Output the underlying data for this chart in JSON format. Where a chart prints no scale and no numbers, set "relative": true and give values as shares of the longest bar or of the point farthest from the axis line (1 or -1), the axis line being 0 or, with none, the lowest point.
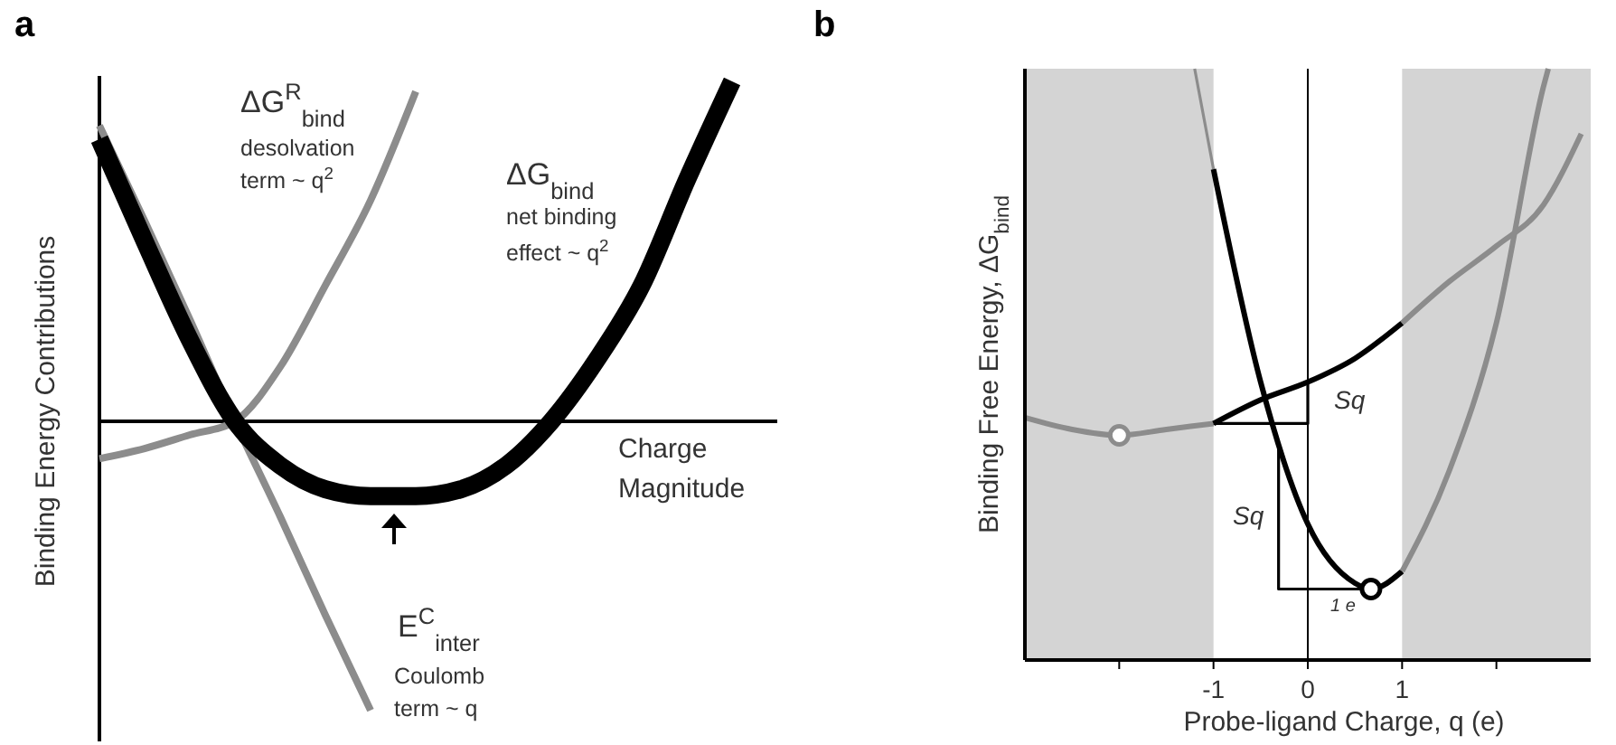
{
  "chart_data": [
    {
      "type": "line",
      "title": "a",
      "xlabel": "Charge Magnitude",
      "ylabel": "Binding Energy Contributions",
      "relative": true,
      "tick_labels": false,
      "categories": [
        null,
        null,
        null,
        null,
        null,
        null,
        null,
        null,
        null,
        null,
        null,
        null,
        null,
        null,
        null,
        null
      ],
      "series": [
        {
          "color": "#8c8c8c",
          "values": [
            -0.11,
            -0.08,
            -0.04,
            0,
            0.16,
            0.4,
            0.65,
            0.97,
            null,
            null,
            null,
            null,
            null,
            null,
            null,
            null
          ]
        },
        {
          "color": "#8c8c8c",
          "values": [
            0.87,
            0.59,
            0.3,
            0,
            -0.28,
            -0.57,
            -0.85,
            null,
            null,
            null,
            null,
            null,
            null,
            null,
            null,
            null
          ]
        },
        {
          "color": "#000000",
          "values": [
            0.83,
            0.53,
            0.24,
            0,
            -0.13,
            -0.2,
            -0.22,
            -0.22,
            -0.2,
            -0.13,
            0,
            0.18,
            0.4,
            0.71,
            1,
            null
          ]
        }
      ],
      "annotations": [
        "ΔG$^{R}$$_{bind}$",
        "desolvation",
        "term ~ q$^{2}$",
        "ΔG$_{bind}$",
        "net binding",
        "effect ~ q$^{2}$",
        "E$^{C}$$_{inter}$",
        "Coulomb",
        "term ~ q"
      ]
    },
    {
      "type": "line",
      "title": "b",
      "xlabel": "Probe-ligand Charge, q (e)",
      "ylabel": "Binding Free Energy, ΔG$_{bind}$",
      "relative": true,
      "tick_labels": "x",
      "xlim": [
        -3,
        3
      ],
      "xticks": [
        {
          "value": -2,
          "label": null
        },
        -1,
        0,
        1,
        {
          "value": 2,
          "label": null
        }
      ],
      "bands": [
        {
          "axis": "x",
          "from": -3,
          "to": -1,
          "color": "#d4d4d4"
        },
        {
          "axis": "x",
          "from": 1,
          "to": 3,
          "color": "#d4d4d4"
        }
      ],
      "ref_lines": [
        {
          "axis": "x",
          "value": 0,
          "color": "#000000"
        }
      ],
      "series": [
        {
          "color": "#8c8c8c",
          "x": [
            -3,
            -2.5,
            -2,
            -1.5,
            -1
          ],
          "values": [
            0.41,
            0.39,
            0.38,
            0.39,
            0.4
          ]
        },
        {
          "color": "#000000",
          "x": [
            -1,
            -0.5,
            0,
            0.5,
            1
          ],
          "values": [
            0.4,
            0.44,
            0.47,
            0.51,
            0.57
          ]
        },
        {
          "color": "#8c8c8c",
          "x": [
            1,
            1.5,
            2,
            2.5,
            2.9
          ],
          "values": [
            0.57,
            0.64,
            0.7,
            0.77,
            0.89
          ]
        },
        {
          "color": "#8c8c8c",
          "x": [
            -1.2,
            -1
          ],
          "values": [
            1,
            0.83
          ]
        },
        {
          "color": "#000000",
          "x": [
            -1,
            -0.5,
            0,
            0.5,
            0.67,
            1
          ],
          "values": [
            0.83,
            0.47,
            0.23,
            0.13,
            0.12,
            0.15
          ]
        },
        {
          "color": "#8c8c8c",
          "x": [
            1,
            1.5,
            2,
            2.5,
            2.55
          ],
          "values": [
            0.15,
            0.32,
            0.57,
            0.97,
            1
          ]
        },
        {
          "color": "#000000",
          "x": [
            -1,
            0,
            0
          ],
          "values": [
            0.4,
            0.4,
            0.47
          ]
        },
        {
          "color": "#000000",
          "x": [
            -0.31,
            -0.31,
            0.69
          ],
          "values": [
            0.36,
            0.12,
            0.12
          ]
        },
        {
          "type": "scatter",
          "marker": "circle",
          "color": "#8c8c8c",
          "x": [
            -2
          ],
          "values": [
            0.38
          ]
        },
        {
          "type": "scatter",
          "marker": "circle",
          "color": "#000000",
          "x": [
            0.67
          ],
          "values": [
            0.12
          ]
        }
      ],
      "annotations": [
        "Sq",
        "Sq",
        "1 e"
      ]
    }
  ]
}
